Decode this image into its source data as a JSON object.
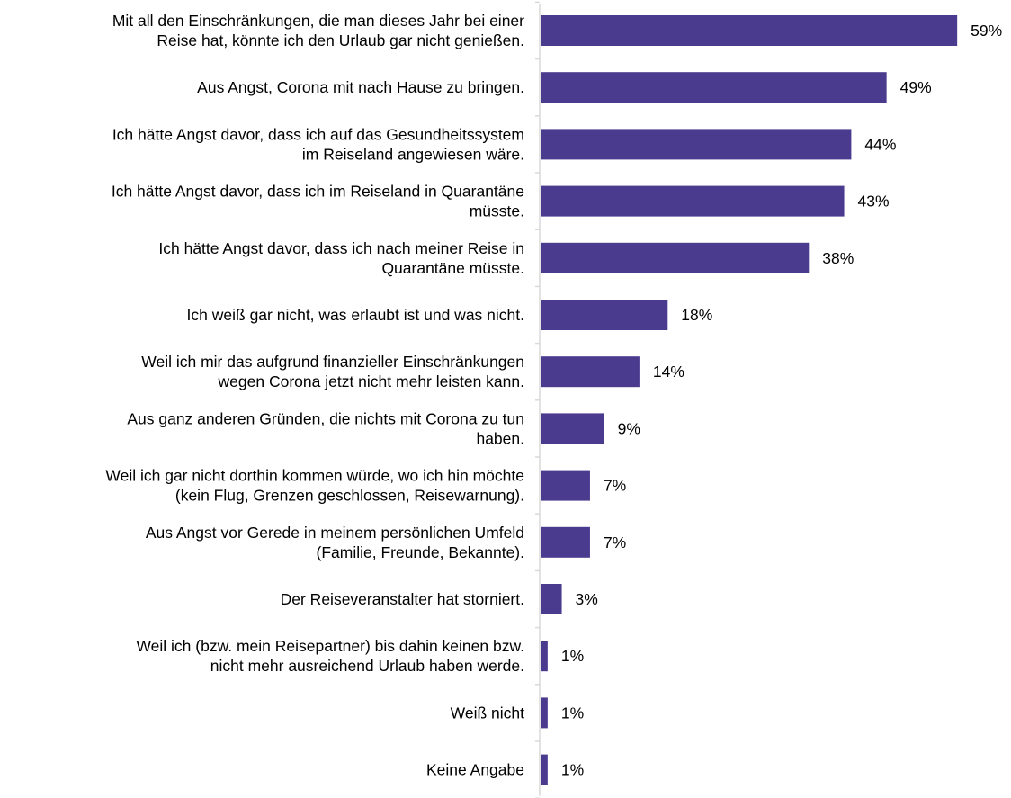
{
  "chart_data": {
    "type": "bar",
    "orientation": "horizontal",
    "categories": [
      [
        "Mit all den Einschränkungen, die man dieses Jahr bei einer",
        "Reise hat, könnte ich den Urlaub gar nicht genießen."
      ],
      [
        "Aus Angst, Corona mit nach Hause zu bringen."
      ],
      [
        "Ich hätte Angst davor, dass ich auf das Gesundheitssystem",
        "im Reiseland angewiesen wäre."
      ],
      [
        "Ich hätte Angst davor, dass ich im Reiseland in Quarantäne",
        "müsste."
      ],
      [
        "Ich hätte Angst davor, dass ich nach meiner Reise in",
        "Quarantäne müsste."
      ],
      [
        "Ich weiß gar nicht, was erlaubt ist und was nicht."
      ],
      [
        "Weil ich mir das aufgrund finanzieller Einschränkungen",
        "wegen Corona jetzt nicht mehr leisten kann."
      ],
      [
        "Aus ganz anderen Gründen, die nichts mit Corona zu tun",
        "haben."
      ],
      [
        "Weil ich gar nicht dorthin kommen würde, wo ich hin möchte",
        "(kein Flug, Grenzen geschlossen, Reisewarnung)."
      ],
      [
        "Aus Angst vor Gerede in meinem persönlichen Umfeld",
        "(Familie, Freunde, Bekannte)."
      ],
      [
        "Der Reiseveranstalter hat storniert."
      ],
      [
        "Weil ich (bzw. mein Reisepartner) bis dahin keinen bzw.",
        "nicht mehr ausreichend Urlaub haben werde."
      ],
      [
        "Weiß nicht"
      ],
      [
        "Keine Angabe"
      ]
    ],
    "values": [
      59,
      49,
      44,
      43,
      38,
      18,
      14,
      9,
      7,
      7,
      3,
      1,
      1,
      1
    ],
    "value_labels": [
      "59%",
      "49%",
      "44%",
      "43%",
      "38%",
      "18%",
      "14%",
      "9%",
      "7%",
      "7%",
      "3%",
      "1%",
      "1%",
      "1%"
    ],
    "unit": "%",
    "bar_color": "#4b3b8f",
    "axis_color": "#d9d9d9",
    "grid": false,
    "legend": "none",
    "title": "",
    "xlabel": "",
    "ylabel": ""
  }
}
